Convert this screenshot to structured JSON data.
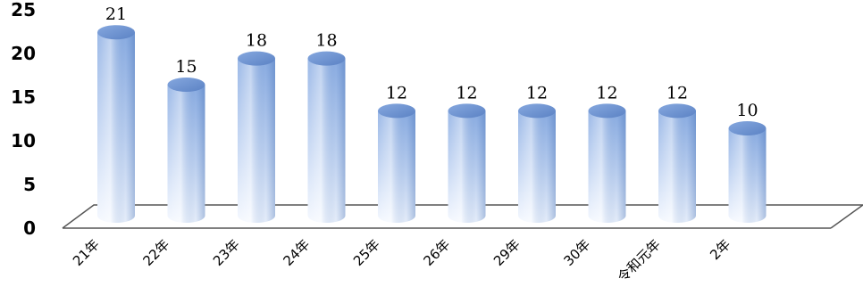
{
  "chart_data": {
    "type": "bar",
    "style": "3d-cylinder",
    "categories": [
      "21年",
      "22年",
      "23年",
      "24年",
      "25年",
      "26年",
      "29年",
      "30年",
      "令和元年",
      "2年"
    ],
    "values": [
      21,
      15,
      18,
      18,
      12,
      12,
      12,
      12,
      12,
      10
    ],
    "data_labels": [
      "21",
      "15",
      "18",
      "18",
      "12",
      "12",
      "12",
      "12",
      "12",
      "10"
    ],
    "y_ticks": [
      "0",
      "5",
      "10",
      "15",
      "20",
      "25"
    ],
    "ylim": [
      0,
      25
    ],
    "grid": false,
    "legend": "none",
    "colors": {
      "bar_top": "#8fb0e4",
      "bar_mid": "#c4d6f3",
      "bar_bottom": "#f4f8ff",
      "cap": "#6f93cf",
      "floor_line": "#555555"
    }
  }
}
